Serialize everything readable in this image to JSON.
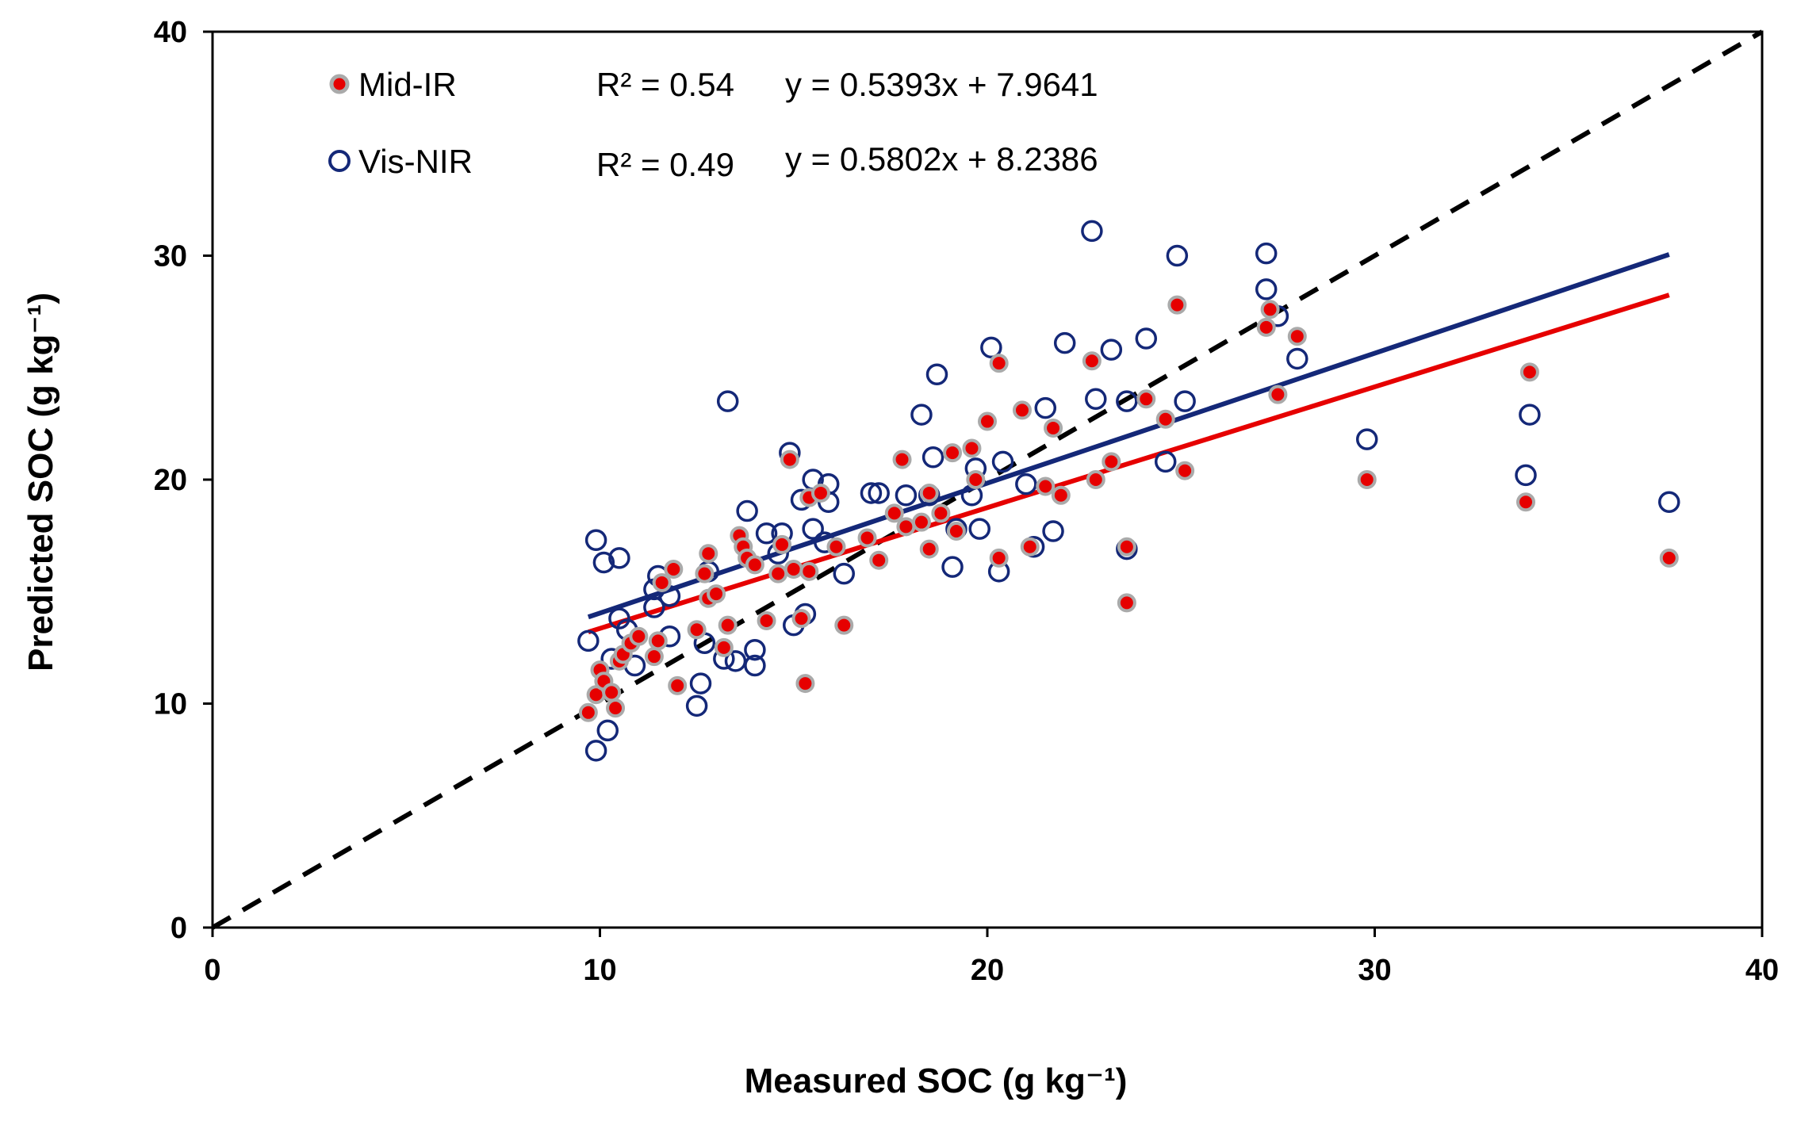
{
  "chart_data": {
    "type": "scatter",
    "title": "",
    "xlabel": "Measured SOC (g kg⁻¹)",
    "ylabel": "Predicted SOC (g kg⁻¹)",
    "xlim": [
      0,
      40
    ],
    "ylim": [
      0,
      40
    ],
    "x_ticks": [
      "0",
      "10",
      "20",
      "30",
      "40"
    ],
    "y_ticks": [
      "0",
      "10",
      "20",
      "30",
      "40"
    ],
    "grid": false,
    "legend_position": "top-left",
    "one_to_one_line": {
      "style": "dashed",
      "color": "#000000",
      "from": [
        0,
        0
      ],
      "to": [
        40,
        40
      ]
    },
    "series": [
      {
        "name": "Mid-IR",
        "marker": "filled-circle",
        "color": "#e60000",
        "edge_color": "#aaaaaa",
        "r2_label": "R² = 0.54",
        "equation_label": "y = 0.5393x + 7.9641",
        "fit": {
          "slope": 0.5393,
          "intercept": 7.9641,
          "x_range": [
            9.7,
            37.6
          ],
          "color": "#e60000"
        },
        "points": [
          [
            9.7,
            9.6
          ],
          [
            9.9,
            10.4
          ],
          [
            10.0,
            11.5
          ],
          [
            10.1,
            11.0
          ],
          [
            10.3,
            10.5
          ],
          [
            10.4,
            9.8
          ],
          [
            10.5,
            11.9
          ],
          [
            10.6,
            12.2
          ],
          [
            10.8,
            12.7
          ],
          [
            11.0,
            13.0
          ],
          [
            11.4,
            12.1
          ],
          [
            11.5,
            12.8
          ],
          [
            11.6,
            15.4
          ],
          [
            11.9,
            16.0
          ],
          [
            12.0,
            10.8
          ],
          [
            12.5,
            13.3
          ],
          [
            12.7,
            15.8
          ],
          [
            12.8,
            16.7
          ],
          [
            12.8,
            14.7
          ],
          [
            13.0,
            14.9
          ],
          [
            13.2,
            12.5
          ],
          [
            13.3,
            13.5
          ],
          [
            13.6,
            17.5
          ],
          [
            13.7,
            17.0
          ],
          [
            13.8,
            16.5
          ],
          [
            14.0,
            16.2
          ],
          [
            14.3,
            13.7
          ],
          [
            14.6,
            15.8
          ],
          [
            14.7,
            17.1
          ],
          [
            14.9,
            20.9
          ],
          [
            15.0,
            16.0
          ],
          [
            15.2,
            13.8
          ],
          [
            15.3,
            10.9
          ],
          [
            15.4,
            15.9
          ],
          [
            15.4,
            19.2
          ],
          [
            15.7,
            19.4
          ],
          [
            16.1,
            17.0
          ],
          [
            16.3,
            13.5
          ],
          [
            16.9,
            17.4
          ],
          [
            17.2,
            16.4
          ],
          [
            17.6,
            18.5
          ],
          [
            17.8,
            20.9
          ],
          [
            17.9,
            17.9
          ],
          [
            18.3,
            18.1
          ],
          [
            18.5,
            16.9
          ],
          [
            18.5,
            19.4
          ],
          [
            18.8,
            18.5
          ],
          [
            19.1,
            21.2
          ],
          [
            19.2,
            17.7
          ],
          [
            19.6,
            21.4
          ],
          [
            19.7,
            20.0
          ],
          [
            20.0,
            22.6
          ],
          [
            20.3,
            25.2
          ],
          [
            20.3,
            16.5
          ],
          [
            20.9,
            23.1
          ],
          [
            21.1,
            17.0
          ],
          [
            21.5,
            19.7
          ],
          [
            21.7,
            22.3
          ],
          [
            21.9,
            19.3
          ],
          [
            22.7,
            25.3
          ],
          [
            22.8,
            20.0
          ],
          [
            23.2,
            20.8
          ],
          [
            23.6,
            14.5
          ],
          [
            23.6,
            17.0
          ],
          [
            24.1,
            23.6
          ],
          [
            24.6,
            22.7
          ],
          [
            24.9,
            27.8
          ],
          [
            25.1,
            20.4
          ],
          [
            27.2,
            26.8
          ],
          [
            27.3,
            27.6
          ],
          [
            27.5,
            23.8
          ],
          [
            28.0,
            26.4
          ],
          [
            29.8,
            20.0
          ],
          [
            33.9,
            19.0
          ],
          [
            34.0,
            24.8
          ],
          [
            37.6,
            16.5
          ]
        ]
      },
      {
        "name": "Vis-NIR",
        "marker": "open-circle",
        "color": "#142878",
        "edge_color": "#142878",
        "r2_label": "R² = 0.49",
        "equation_label": "y = 0.5802x + 8.2386",
        "fit": {
          "slope": 0.5802,
          "intercept": 8.2386,
          "x_range": [
            9.7,
            37.6
          ],
          "color": "#142878"
        },
        "points": [
          [
            9.7,
            12.8
          ],
          [
            9.9,
            7.9
          ],
          [
            9.9,
            17.3
          ],
          [
            10.1,
            16.3
          ],
          [
            10.2,
            8.8
          ],
          [
            10.3,
            12.0
          ],
          [
            10.5,
            16.5
          ],
          [
            10.5,
            13.8
          ],
          [
            10.7,
            13.3
          ],
          [
            10.9,
            11.7
          ],
          [
            11.4,
            14.3
          ],
          [
            11.4,
            15.1
          ],
          [
            11.5,
            15.7
          ],
          [
            11.8,
            14.8
          ],
          [
            11.8,
            13.0
          ],
          [
            12.5,
            9.9
          ],
          [
            12.6,
            10.9
          ],
          [
            12.7,
            12.7
          ],
          [
            12.8,
            15.9
          ],
          [
            13.2,
            12.0
          ],
          [
            13.3,
            23.5
          ],
          [
            13.5,
            11.9
          ],
          [
            13.8,
            18.6
          ],
          [
            14.0,
            12.4
          ],
          [
            14.0,
            11.7
          ],
          [
            14.3,
            17.6
          ],
          [
            14.6,
            16.7
          ],
          [
            14.7,
            17.6
          ],
          [
            14.9,
            21.2
          ],
          [
            15.0,
            13.5
          ],
          [
            15.2,
            19.1
          ],
          [
            15.3,
            14.0
          ],
          [
            15.5,
            17.8
          ],
          [
            15.5,
            20.0
          ],
          [
            15.8,
            17.2
          ],
          [
            15.9,
            19.8
          ],
          [
            15.9,
            19.0
          ],
          [
            16.3,
            15.8
          ],
          [
            17.0,
            19.4
          ],
          [
            17.2,
            19.4
          ],
          [
            17.9,
            19.3
          ],
          [
            18.3,
            22.9
          ],
          [
            18.5,
            19.3
          ],
          [
            18.6,
            21.0
          ],
          [
            18.7,
            24.7
          ],
          [
            19.1,
            16.1
          ],
          [
            19.2,
            17.8
          ],
          [
            19.6,
            19.3
          ],
          [
            19.7,
            20.5
          ],
          [
            19.8,
            17.8
          ],
          [
            20.1,
            25.9
          ],
          [
            20.3,
            15.9
          ],
          [
            20.4,
            20.8
          ],
          [
            21.0,
            19.8
          ],
          [
            21.2,
            17.0
          ],
          [
            21.5,
            23.2
          ],
          [
            21.7,
            17.7
          ],
          [
            22.0,
            26.1
          ],
          [
            22.7,
            31.1
          ],
          [
            22.8,
            23.6
          ],
          [
            23.2,
            25.8
          ],
          [
            23.6,
            23.5
          ],
          [
            23.6,
            16.9
          ],
          [
            24.1,
            26.3
          ],
          [
            24.6,
            20.8
          ],
          [
            24.9,
            30.0
          ],
          [
            25.1,
            23.5
          ],
          [
            27.2,
            30.1
          ],
          [
            27.2,
            28.5
          ],
          [
            27.5,
            27.3
          ],
          [
            28.0,
            25.4
          ],
          [
            29.8,
            21.8
          ],
          [
            33.9,
            20.2
          ],
          [
            34.0,
            22.9
          ],
          [
            37.6,
            19.0
          ]
        ]
      }
    ]
  }
}
